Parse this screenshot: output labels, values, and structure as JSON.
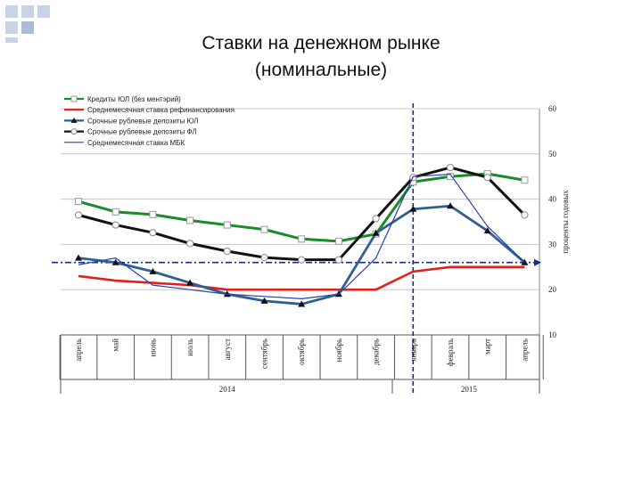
{
  "slide": {
    "title_line1": "Ставки на денежном рынке",
    "title_line2": "(номинальные)"
  },
  "chart_data": {
    "type": "line",
    "categories": [
      "апрель",
      "май",
      "июнь",
      "июль",
      "август",
      "сентябрь",
      "октябрь",
      "ноябрь",
      "декабрь",
      "январь",
      "февраль",
      "март",
      "апрель"
    ],
    "year_labels": [
      {
        "label": "2014",
        "category_index": 4
      },
      {
        "label": "2015",
        "category_index": 10.5
      }
    ],
    "ylabel": "проценты годовых",
    "ylim": [
      10,
      60
    ],
    "yticks": [
      10,
      20,
      30,
      40,
      50,
      60
    ],
    "grid": true,
    "legend_position": "top-left",
    "reference_lines": {
      "horizontal_value": 26,
      "vertical_category_index": 9
    },
    "series": [
      {
        "name": "Кредиты ЮЛ (без ментэрий)",
        "color": "#1a8a2a",
        "marker": "square",
        "values": [
          39.5,
          37.2,
          36.6,
          35.3,
          34.3,
          33.3,
          31.2,
          30.7,
          32.3,
          43.8,
          45.0,
          45.6,
          44.2
        ]
      },
      {
        "name": "Среднемесячная ставка рефинансирования",
        "color": "#e0201a",
        "marker": "none",
        "values": [
          23,
          22,
          21.5,
          21,
          20,
          20,
          20,
          20,
          20,
          24,
          25,
          25,
          25
        ]
      },
      {
        "name": "Срочные рублевые депозиты ЮЛ",
        "color": "#2f5f8f",
        "marker": "triangle",
        "values": [
          27,
          26,
          24,
          21.5,
          19,
          17.5,
          16.8,
          19,
          32.5,
          37.8,
          38.5,
          33,
          26
        ]
      },
      {
        "name": "Срочные рублевые депозиты ФЛ",
        "color": "#111111",
        "marker": "circle",
        "values": [
          36.5,
          34.3,
          32.6,
          30.2,
          28.5,
          27.1,
          26.6,
          26.6,
          35.7,
          44.8,
          47.0,
          44.8,
          36.5
        ]
      },
      {
        "name": "Среднемесячная ставка МБК",
        "color": "#2a3fb0",
        "marker": "none",
        "values": [
          25.5,
          27,
          21,
          20,
          19,
          18.5,
          18,
          19,
          27,
          45,
          45.5,
          34,
          26
        ]
      }
    ]
  }
}
